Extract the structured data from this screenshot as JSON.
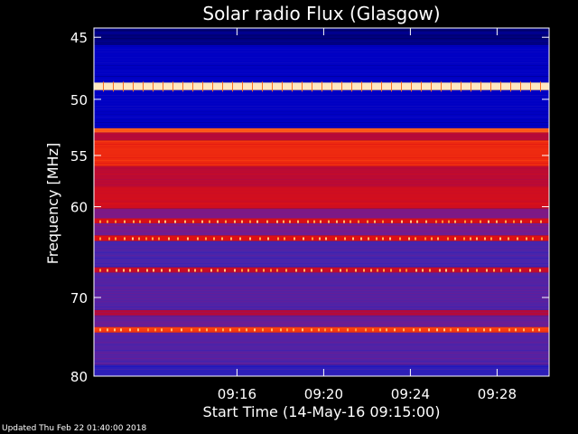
{
  "chart_data": {
    "type": "heatmap",
    "title": "Solar radio Flux (Glasgow)",
    "xlabel": "Start Time (14-May-16 09:15:00)",
    "ylabel": "Frequency [MHz]",
    "x_range_minutes": [
      9.4,
      30.4
    ],
    "y_range_mhz": [
      44.3,
      80.0
    ],
    "y_scale": "log",
    "x_ticks": [
      {
        "minute": 16,
        "label": "09:16"
      },
      {
        "minute": 20,
        "label": "09:20"
      },
      {
        "minute": 24,
        "label": "09:24"
      },
      {
        "minute": 28,
        "label": "09:28"
      }
    ],
    "y_ticks": [
      {
        "value": 45,
        "label": "45"
      },
      {
        "value": 50,
        "label": "50"
      },
      {
        "value": 55,
        "label": "55"
      },
      {
        "value": 60,
        "label": "60"
      },
      {
        "value": 70,
        "label": "70"
      },
      {
        "value": 80,
        "label": "80"
      }
    ],
    "colormap": [
      "#000050",
      "#0000c8",
      "#3a28b4",
      "#7a1a8a",
      "#b40a3a",
      "#e01010",
      "#ff4a10",
      "#ffa040",
      "#ffe8c0"
    ],
    "frequency_bands": [
      {
        "f0": 44.3,
        "f1": 45.6,
        "level": 0.05
      },
      {
        "f0": 45.6,
        "f1": 48.6,
        "level": 0.12
      },
      {
        "f0": 48.6,
        "f1": 49.2,
        "level": 1.0
      },
      {
        "f0": 49.2,
        "f1": 52.5,
        "level": 0.12
      },
      {
        "f0": 52.5,
        "f1": 52.9,
        "level": 0.78
      },
      {
        "f0": 52.9,
        "f1": 53.6,
        "level": 0.5
      },
      {
        "f0": 53.6,
        "f1": 56.0,
        "level": 0.68
      },
      {
        "f0": 56.0,
        "f1": 58.0,
        "level": 0.52
      },
      {
        "f0": 58.0,
        "f1": 60.2,
        "level": 0.58
      },
      {
        "f0": 60.2,
        "f1": 61.2,
        "level": 0.38
      },
      {
        "f0": 61.2,
        "f1": 61.7,
        "level": 0.6
      },
      {
        "f0": 61.7,
        "f1": 63.0,
        "level": 0.36
      },
      {
        "f0": 63.0,
        "f1": 63.6,
        "level": 0.62
      },
      {
        "f0": 63.6,
        "f1": 66.5,
        "level": 0.28
      },
      {
        "f0": 66.5,
        "f1": 67.1,
        "level": 0.55
      },
      {
        "f0": 67.1,
        "f1": 71.5,
        "level": 0.3
      },
      {
        "f0": 71.5,
        "f1": 72.2,
        "level": 0.5
      },
      {
        "f0": 72.2,
        "f1": 73.6,
        "level": 0.34
      },
      {
        "f0": 73.6,
        "f1": 74.3,
        "level": 0.72
      },
      {
        "f0": 74.3,
        "f1": 78.5,
        "level": 0.3
      },
      {
        "f0": 78.5,
        "f1": 80.0,
        "level": 0.22
      }
    ]
  },
  "footer": {
    "updated": "Updated Thu Feb 22 01:40:00 2018"
  }
}
